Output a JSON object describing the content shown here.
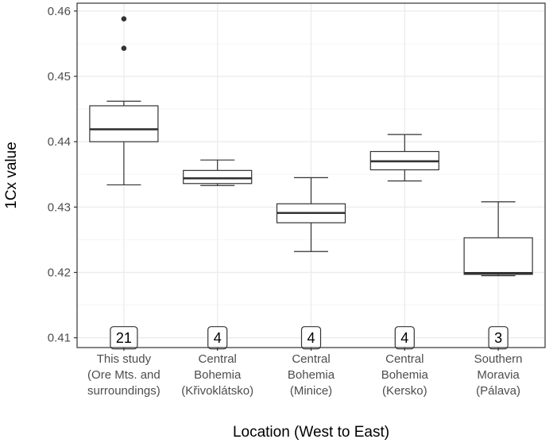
{
  "chart_data": {
    "type": "boxplot",
    "xlabel": "Location (West to East)",
    "ylabel": "1Cx value",
    "ylim": [
      0.4085,
      0.4612
    ],
    "yticks": [
      "0.41",
      "0.42",
      "0.43",
      "0.44",
      "0.45",
      "0.46"
    ],
    "grid": true,
    "legend": "none",
    "categories": [
      [
        "This study",
        "(Ore Mts. and",
        "surroundings)"
      ],
      [
        "Central",
        "Bohemia",
        "(Křivoklátsko)"
      ],
      [
        "Central",
        "Bohemia",
        "(Minice)"
      ],
      [
        "Central",
        "Bohemia",
        "(Kersko)"
      ],
      [
        "Southern",
        "Moravia",
        "(Pálava)"
      ]
    ],
    "boxes": [
      {
        "whisker_low": 0.4334,
        "q1": 0.44,
        "median": 0.4419,
        "q3": 0.4455,
        "whisker_high": 0.4462,
        "outliers": [
          0.4588,
          0.4543
        ],
        "n": "21"
      },
      {
        "whisker_low": 0.4333,
        "q1": 0.4336,
        "median": 0.4344,
        "q3": 0.4356,
        "whisker_high": 0.4372,
        "outliers": [],
        "n": "4"
      },
      {
        "whisker_low": 0.4232,
        "q1": 0.4276,
        "median": 0.4291,
        "q3": 0.4305,
        "whisker_high": 0.4345,
        "outliers": [],
        "n": "4"
      },
      {
        "whisker_low": 0.434,
        "q1": 0.4357,
        "median": 0.437,
        "q3": 0.4385,
        "whisker_high": 0.4411,
        "outliers": [],
        "n": "4"
      },
      {
        "whisker_low": 0.4195,
        "q1": 0.4197,
        "median": 0.4199,
        "q3": 0.4253,
        "whisker_high": 0.4308,
        "outliers": [],
        "n": "3"
      }
    ],
    "colors": {
      "panel_border": "#333333",
      "grid_major": "#ebebeb",
      "grid_minor": "#f5f5f5",
      "box_stroke": "#333333",
      "box_fill": "#ffffff",
      "tick_text": "#4d4d4d"
    }
  }
}
